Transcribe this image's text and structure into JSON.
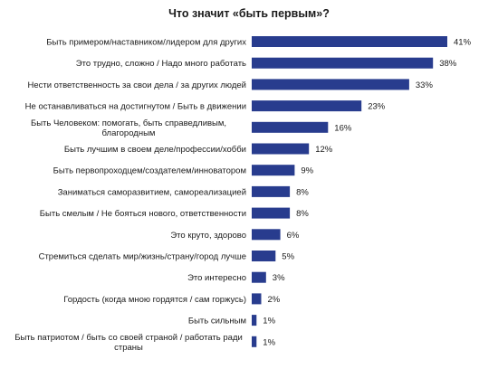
{
  "colors": {
    "bar": "#283c8e",
    "text": "#1a1a1a",
    "background": "#ffffff"
  },
  "chart_data": {
    "type": "bar",
    "orientation": "horizontal",
    "title": "Что значит «быть первым»?",
    "xlabel": "",
    "ylabel": "",
    "xlim": [
      0,
      41
    ],
    "grid": false,
    "legend": "none",
    "value_suffix": "%",
    "categories": [
      [
        "Быть примером/наставником/лидером для других"
      ],
      [
        "Это трудно, сложно / Надо много работать"
      ],
      [
        "Нести ответственность за свои дела / за других людей"
      ],
      [
        "Не  останавливаться на достигнутом / Быть в движении"
      ],
      [
        "Быть Человеком: помогать, быть справедливым,",
        "благородным"
      ],
      [
        "Быть лучшим в своем деле/профессии/хобби"
      ],
      [
        "Быть первопроходцем/создателем/инноватором"
      ],
      [
        "Заниматься саморазвитием, самореализацией"
      ],
      [
        "Быть смелым / Не бояться нового, ответственности"
      ],
      [
        "Это круто, здорово"
      ],
      [
        "Стремиться сделать мир/жизнь/страну/город лучше"
      ],
      [
        "Это интересно"
      ],
      [
        "Гордость (когда мною гордятся / сам горжусь)"
      ],
      [
        "Быть сильным"
      ],
      [
        "Быть патриотом / быть со своей страной / работать ради",
        "страны"
      ]
    ],
    "values": [
      41,
      38,
      33,
      23,
      16,
      12,
      9,
      8,
      8,
      6,
      5,
      3,
      2,
      1,
      1
    ]
  }
}
